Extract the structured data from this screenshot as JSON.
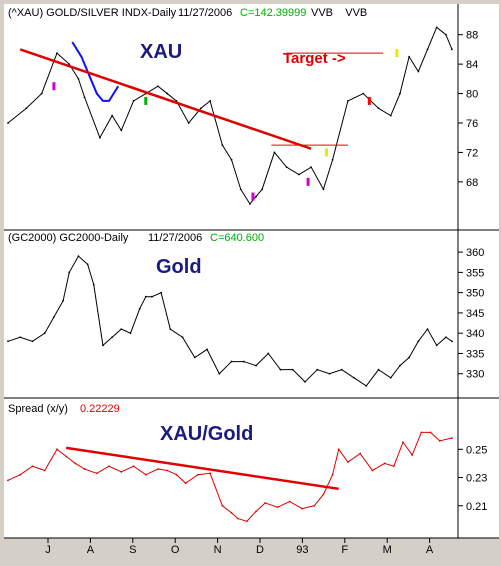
{
  "colors": {
    "background": "#ffffff",
    "frame": "#d4d0c8",
    "price_line": "#000000",
    "trendline": "#e00000",
    "spread_line": "#e00000",
    "overlay_blue": "#1010ff",
    "title_green": "#00b000",
    "title_red": "#e00000",
    "title_blue": "#1a1a80",
    "marker_red": "#ff0000",
    "marker_magenta": "#d000d0",
    "marker_green": "#00b000",
    "marker_yellow": "#e8e800"
  },
  "panels": [
    {
      "id": "xau",
      "header": {
        "symbol": "(^XAU) GOLD/SILVER INDX-Daily",
        "date": "11/27/2006",
        "close": "C=142.39999",
        "tags": "VVB    VVB"
      },
      "big_label": "XAU",
      "target_label": "Target ->"
    },
    {
      "id": "gold",
      "header": {
        "symbol": "(GC2000) GC2000-Daily",
        "date": "11/27/2006",
        "close": "C=640.600"
      },
      "big_label": "Gold"
    },
    {
      "id": "spread",
      "header": {
        "symbol": "Spread (x/y)",
        "close": "0.22229"
      },
      "big_label": "XAU/Gold"
    }
  ],
  "chart_data": [
    {
      "type": "line",
      "panel": "xau",
      "title": "(^XAU) GOLD/SILVER INDX-Daily",
      "ylim": [
        62,
        90
      ],
      "yticks": [
        68,
        72,
        76,
        80,
        84,
        88
      ],
      "x_ticks": [
        "J",
        "A",
        "S",
        "O",
        "N",
        "D",
        "93",
        "F",
        "M",
        "A"
      ],
      "x_domain": [
        0,
        290
      ],
      "series": [
        {
          "x": [
            0,
            12,
            22,
            32,
            40,
            46,
            50,
            60,
            68,
            74,
            82,
            90,
            98,
            104,
            110,
            118,
            126,
            132,
            140,
            146,
            152,
            158,
            162,
            166,
            174,
            182,
            190,
            198,
            206,
            212,
            222,
            232,
            242,
            250,
            256,
            262,
            268,
            274,
            280,
            286,
            290
          ],
          "values": [
            76,
            78,
            80,
            85.5,
            84,
            82,
            79.5,
            74,
            77,
            75,
            79,
            80,
            81,
            80,
            79,
            76,
            78,
            79,
            73,
            71,
            67,
            65,
            66,
            67,
            72,
            70,
            69,
            70,
            67,
            71,
            79,
            80,
            78,
            77,
            80,
            85,
            83,
            86,
            89,
            88,
            86
          ]
        }
      ],
      "overlay_blue": {
        "x": [
          42,
          48,
          52,
          58,
          62,
          66,
          72
        ],
        "values": [
          87,
          85,
          83,
          80,
          79,
          79,
          81
        ]
      },
      "trendline": {
        "x": [
          8,
          198
        ],
        "values": [
          86,
          72.5
        ]
      },
      "horizontal_lines": [
        {
          "x": [
            172,
            222
          ],
          "value": 73
        },
        {
          "x": [
            182,
            245
          ],
          "value": 85.5
        }
      ],
      "markers": [
        {
          "x": 30,
          "value": 81,
          "color": "marker_magenta"
        },
        {
          "x": 90,
          "value": 79,
          "color": "marker_green"
        },
        {
          "x": 160,
          "value": 66,
          "color": "marker_magenta"
        },
        {
          "x": 196,
          "value": 68,
          "color": "marker_magenta"
        },
        {
          "x": 208,
          "value": 72,
          "color": "marker_yellow"
        },
        {
          "x": 236,
          "value": 79,
          "color": "marker_red"
        },
        {
          "x": 254,
          "value": 85.5,
          "color": "marker_yellow"
        }
      ]
    },
    {
      "type": "line",
      "panel": "gold",
      "title": "(GC2000) GC2000-Daily",
      "ylim": [
        325,
        362
      ],
      "yticks": [
        330,
        335,
        340,
        345,
        350,
        355,
        360
      ],
      "series": [
        {
          "x": [
            0,
            8,
            16,
            24,
            30,
            36,
            40,
            46,
            52,
            56,
            62,
            68,
            74,
            80,
            86,
            90,
            94,
            100,
            106,
            114,
            122,
            130,
            138,
            146,
            154,
            162,
            170,
            178,
            186,
            194,
            202,
            210,
            218,
            226,
            234,
            242,
            250,
            256,
            262,
            268,
            274,
            280,
            286,
            290
          ],
          "values": [
            338,
            339,
            338,
            340,
            344,
            348,
            355,
            359,
            357,
            352,
            337,
            339,
            341,
            340,
            346,
            349,
            349,
            350,
            341,
            339,
            334,
            336,
            330,
            333,
            333,
            332,
            335,
            331,
            331,
            328,
            331,
            330,
            331,
            329,
            327,
            331,
            329,
            332,
            334,
            338,
            341,
            337,
            339,
            338
          ]
        }
      ]
    },
    {
      "type": "line",
      "panel": "spread",
      "title": "Spread (x/y)",
      "ylim": [
        0.19,
        0.275
      ],
      "yticks": [
        0.21,
        0.23,
        0.25
      ],
      "series": [
        {
          "x": [
            0,
            8,
            16,
            24,
            32,
            38,
            44,
            50,
            58,
            66,
            74,
            82,
            90,
            98,
            104,
            110,
            116,
            124,
            132,
            140,
            146,
            150,
            156,
            162,
            168,
            176,
            184,
            192,
            200,
            206,
            212,
            216,
            222,
            230,
            238,
            246,
            252,
            258,
            264,
            270,
            276,
            282,
            290
          ],
          "values": [
            0.228,
            0.232,
            0.238,
            0.235,
            0.25,
            0.245,
            0.24,
            0.236,
            0.233,
            0.238,
            0.234,
            0.238,
            0.232,
            0.236,
            0.235,
            0.232,
            0.226,
            0.232,
            0.233,
            0.21,
            0.205,
            0.201,
            0.199,
            0.206,
            0.212,
            0.209,
            0.213,
            0.208,
            0.21,
            0.218,
            0.232,
            0.25,
            0.241,
            0.247,
            0.235,
            0.24,
            0.238,
            0.255,
            0.246,
            0.262,
            0.262,
            0.256,
            0.258
          ]
        }
      ],
      "trendline": {
        "x": [
          38,
          216
        ],
        "values": [
          0.251,
          0.222
        ]
      }
    }
  ]
}
